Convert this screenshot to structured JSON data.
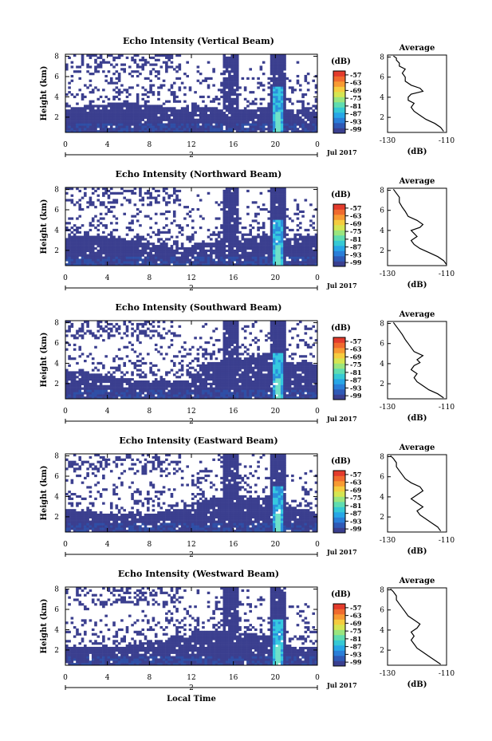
{
  "figure": {
    "x_axis_title": "Local Time",
    "date_label": "Jul 2017",
    "day_label": "2",
    "height_label": "Height (km)",
    "unit_label": "(dB)",
    "average_title": "Average"
  },
  "chart_data": [
    {
      "type": "heatmap",
      "title": "Echo Intensity (Vertical Beam)",
      "x_ticks": [
        "0",
        "4",
        "8",
        "12",
        "16",
        "20",
        "0"
      ],
      "y_ticks": [
        "2",
        "4",
        "6",
        "8"
      ],
      "xlim": [
        0,
        24
      ],
      "ylim": [
        0.5,
        8.2
      ],
      "colorbar": {
        "unit": "(dB)",
        "ticks": [
          "-57",
          "-63",
          "-69",
          "-75",
          "-81",
          "-87",
          "-93",
          "-99"
        ],
        "range": [
          -102,
          -54
        ]
      },
      "inset": {
        "type": "line",
        "title": "Average",
        "xlabel": "(dB)",
        "x_ticks": [
          "-130",
          "-110"
        ],
        "y_ticks": [
          "2",
          "4",
          "6",
          "8"
        ],
        "xlim": [
          -130,
          -110
        ],
        "ylim": [
          0.5,
          8.2
        ],
        "x": [
          -111,
          -112,
          -114,
          -117,
          -119,
          -121,
          -122,
          -121,
          -123,
          -123,
          -122,
          -118,
          -119,
          -122,
          -124,
          -124,
          -125,
          -124,
          -126,
          -126,
          -127,
          -127,
          -128
        ],
        "y": [
          0.6,
          1.0,
          1.4,
          1.8,
          2.2,
          2.6,
          3.0,
          3.4,
          3.7,
          4.0,
          4.3,
          4.6,
          4.9,
          5.2,
          5.6,
          6.0,
          6.4,
          6.8,
          7.1,
          7.4,
          7.7,
          7.9,
          8.1
        ]
      }
    },
    {
      "type": "heatmap",
      "title": "Echo Intensity (Northward Beam)",
      "x_ticks": [
        "0",
        "4",
        "8",
        "12",
        "16",
        "20",
        "0"
      ],
      "y_ticks": [
        "2",
        "4",
        "6",
        "8"
      ],
      "xlim": [
        0,
        24
      ],
      "ylim": [
        0.5,
        8.2
      ],
      "colorbar": {
        "unit": "(dB)",
        "ticks": [
          "-57",
          "-63",
          "-69",
          "-75",
          "-81",
          "-87",
          "-93",
          "-99"
        ],
        "range": [
          -102,
          -54
        ]
      },
      "inset": {
        "type": "line",
        "title": "Average",
        "xlabel": "(dB)",
        "x_ticks": [
          "-130",
          "-110"
        ],
        "y_ticks": [
          "2",
          "4",
          "6",
          "8"
        ],
        "xlim": [
          -130,
          -110
        ],
        "ylim": [
          0.5,
          8.2
        ],
        "x": [
          -110,
          -111,
          -113,
          -116,
          -119,
          -121,
          -122,
          -120,
          -121,
          -122,
          -119,
          -118,
          -120,
          -123,
          -124,
          -125,
          -126,
          -126,
          -127,
          -128
        ],
        "y": [
          0.6,
          1.0,
          1.4,
          1.8,
          2.2,
          2.6,
          3.0,
          3.4,
          3.7,
          4.0,
          4.3,
          4.6,
          5.0,
          5.4,
          5.9,
          6.3,
          6.8,
          7.3,
          7.7,
          8.1
        ]
      }
    },
    {
      "type": "heatmap",
      "title": "Echo Intensity (Southward Beam)",
      "x_ticks": [
        "0",
        "4",
        "8",
        "12",
        "16",
        "20",
        "0"
      ],
      "y_ticks": [
        "2",
        "4",
        "6",
        "8"
      ],
      "xlim": [
        0,
        24
      ],
      "ylim": [
        0.5,
        8.2
      ],
      "colorbar": {
        "unit": "(dB)",
        "ticks": [
          "-57",
          "-63",
          "-69",
          "-75",
          "-81",
          "-87",
          "-93",
          "-99"
        ],
        "range": [
          -102,
          -54
        ]
      },
      "inset": {
        "type": "line",
        "title": "Average",
        "xlabel": "(dB)",
        "x_ticks": [
          "-130",
          "-110"
        ],
        "y_ticks": [
          "2",
          "4",
          "6",
          "8"
        ],
        "xlim": [
          -130,
          -110
        ],
        "ylim": [
          0.5,
          8.2
        ],
        "x": [
          -111,
          -113,
          -116,
          -118,
          -120,
          -121,
          -120,
          -122,
          -121,
          -119,
          -120,
          -118,
          -121,
          -122,
          -123,
          -124,
          -125,
          -126,
          -127,
          -128
        ],
        "y": [
          0.6,
          1.0,
          1.4,
          1.8,
          2.2,
          2.6,
          3.0,
          3.4,
          3.8,
          4.1,
          4.4,
          4.8,
          5.2,
          5.6,
          6.0,
          6.4,
          6.9,
          7.3,
          7.7,
          8.1
        ]
      }
    },
    {
      "type": "heatmap",
      "title": "Echo Intensity (Eastward Beam)",
      "x_ticks": [
        "0",
        "4",
        "8",
        "12",
        "16",
        "20",
        "0"
      ],
      "y_ticks": [
        "2",
        "4",
        "6",
        "8"
      ],
      "xlim": [
        0,
        24
      ],
      "ylim": [
        0.5,
        8.2
      ],
      "colorbar": {
        "unit": "(dB)",
        "ticks": [
          "-57",
          "-63",
          "-69",
          "-75",
          "-81",
          "-87",
          "-93",
          "-99"
        ],
        "range": [
          -102,
          -54
        ]
      },
      "inset": {
        "type": "line",
        "title": "Average",
        "xlabel": "(dB)",
        "x_ticks": [
          "-130",
          "-110"
        ],
        "y_ticks": [
          "2",
          "4",
          "6",
          "8"
        ],
        "xlim": [
          -130,
          -110
        ],
        "ylim": [
          0.5,
          8.2
        ],
        "x": [
          -112,
          -113,
          -115,
          -117,
          -119,
          -120,
          -118,
          -120,
          -122,
          -120,
          -118,
          -119,
          -122,
          -124,
          -125,
          -126,
          -127,
          -127,
          -128,
          -129
        ],
        "y": [
          0.6,
          1.0,
          1.4,
          1.8,
          2.2,
          2.6,
          3.0,
          3.4,
          3.8,
          4.2,
          4.6,
          5.0,
          5.4,
          5.8,
          6.2,
          6.6,
          7.0,
          7.4,
          7.8,
          8.1
        ]
      }
    },
    {
      "type": "heatmap",
      "title": "Echo Intensity (Westward Beam)",
      "x_ticks": [
        "0",
        "4",
        "8",
        "12",
        "16",
        "20",
        "0"
      ],
      "y_ticks": [
        "2",
        "4",
        "6",
        "8"
      ],
      "xlim": [
        0,
        24
      ],
      "ylim": [
        0.5,
        8.2
      ],
      "colorbar": {
        "unit": "(dB)",
        "ticks": [
          "-57",
          "-63",
          "-69",
          "-75",
          "-81",
          "-87",
          "-93",
          "-99"
        ],
        "range": [
          -102,
          -54
        ]
      },
      "inset": {
        "type": "line",
        "title": "Average",
        "xlabel": "(dB)",
        "x_ticks": [
          "-130",
          "-110"
        ],
        "y_ticks": [
          "2",
          "4",
          "6",
          "8"
        ],
        "xlim": [
          -130,
          -110
        ],
        "ylim": [
          0.5,
          8.2
        ],
        "x": [
          -112,
          -114,
          -116,
          -118,
          -120,
          -121,
          -122,
          -121,
          -122,
          -120,
          -119,
          -121,
          -123,
          -124,
          -125,
          -126,
          -127,
          -127,
          -128,
          -129
        ],
        "y": [
          0.6,
          1.0,
          1.4,
          1.8,
          2.2,
          2.6,
          3.0,
          3.4,
          3.8,
          4.2,
          4.6,
          5.0,
          5.4,
          5.8,
          6.2,
          6.6,
          7.0,
          7.4,
          7.8,
          8.1
        ]
      }
    }
  ]
}
